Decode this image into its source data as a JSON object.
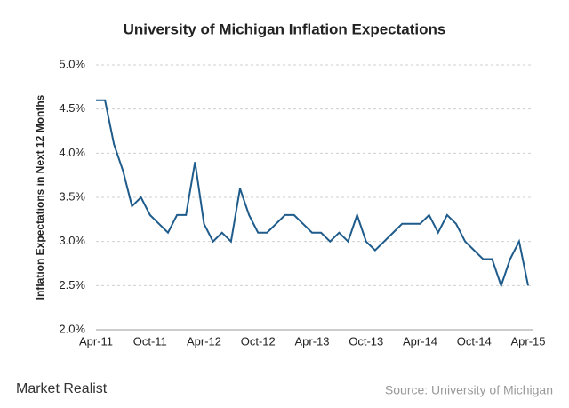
{
  "chart_data": {
    "type": "line",
    "title": "University of Michigan Inflation Expectations",
    "y_label": "Inflation Expectations in Next 12 Months",
    "source": "Source: University of Michigan",
    "brand": "Market Realist",
    "categories": [
      "Apr-11",
      null,
      null,
      null,
      null,
      null,
      "Oct-11",
      null,
      null,
      null,
      null,
      null,
      "Apr-12",
      null,
      null,
      null,
      null,
      null,
      "Oct-12",
      null,
      null,
      null,
      null,
      null,
      "Apr-13",
      null,
      null,
      null,
      null,
      null,
      "Oct-13",
      null,
      null,
      null,
      null,
      null,
      "Apr-14",
      null,
      null,
      null,
      null,
      null,
      "Oct-14",
      null,
      null,
      null,
      null,
      null,
      "Apr-15"
    ],
    "series": [
      {
        "name": "Inflation Expectations",
        "color": "#1f5c8b",
        "values": [
          4.6,
          4.6,
          4.1,
          3.8,
          3.4,
          3.5,
          3.3,
          3.2,
          3.1,
          3.3,
          3.3,
          3.9,
          3.2,
          3.0,
          3.1,
          3.0,
          3.6,
          3.3,
          3.1,
          3.1,
          3.2,
          3.3,
          3.3,
          3.2,
          3.1,
          3.1,
          3.0,
          3.1,
          3.0,
          3.3,
          3.0,
          2.9,
          3.0,
          3.1,
          3.2,
          3.2,
          3.2,
          3.3,
          3.1,
          3.3,
          3.2,
          3.0,
          2.9,
          2.8,
          2.8,
          2.5,
          2.8,
          3.0,
          2.5
        ]
      }
    ],
    "ylim": [
      2.0,
      5.0
    ],
    "yticks": [
      {
        "value": 2.0,
        "label": "2.0%"
      },
      {
        "value": 2.5,
        "label": "2.5%"
      },
      {
        "value": 3.0,
        "label": "3.0%"
      },
      {
        "value": 3.5,
        "label": "3.5%"
      },
      {
        "value": 4.0,
        "label": "4.0%"
      },
      {
        "value": 4.5,
        "label": "4.5%"
      },
      {
        "value": 5.0,
        "label": "5.0%"
      }
    ],
    "grid": true
  }
}
